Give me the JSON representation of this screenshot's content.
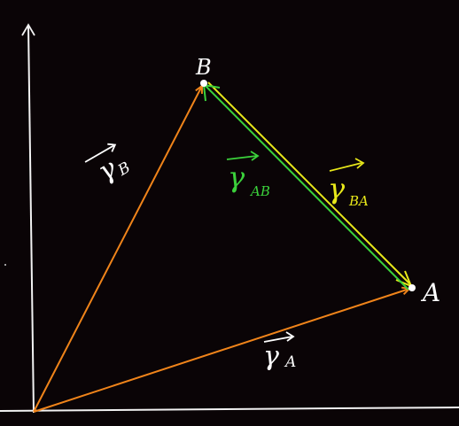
{
  "points": {
    "a_label": "A",
    "b_label": "B"
  },
  "vectors": {
    "r_b": {
      "glyph": "γ",
      "subscript": "B",
      "color": "#ffffff"
    },
    "r_a": {
      "glyph": "γ",
      "subscript": "A",
      "color": "#ffffff"
    },
    "r_ab": {
      "glyph": "γ",
      "subscript": "AB",
      "color": "#3bd13b"
    },
    "r_ba": {
      "glyph": "γ",
      "subscript": "BA",
      "color": "#e8e81a"
    }
  },
  "colors": {
    "background": "#0a0406",
    "axis": "#f2f2f2",
    "position_vectors": "#f0841a",
    "ab_vector": "#3bd13b",
    "ba_vector": "#e8e81a"
  }
}
